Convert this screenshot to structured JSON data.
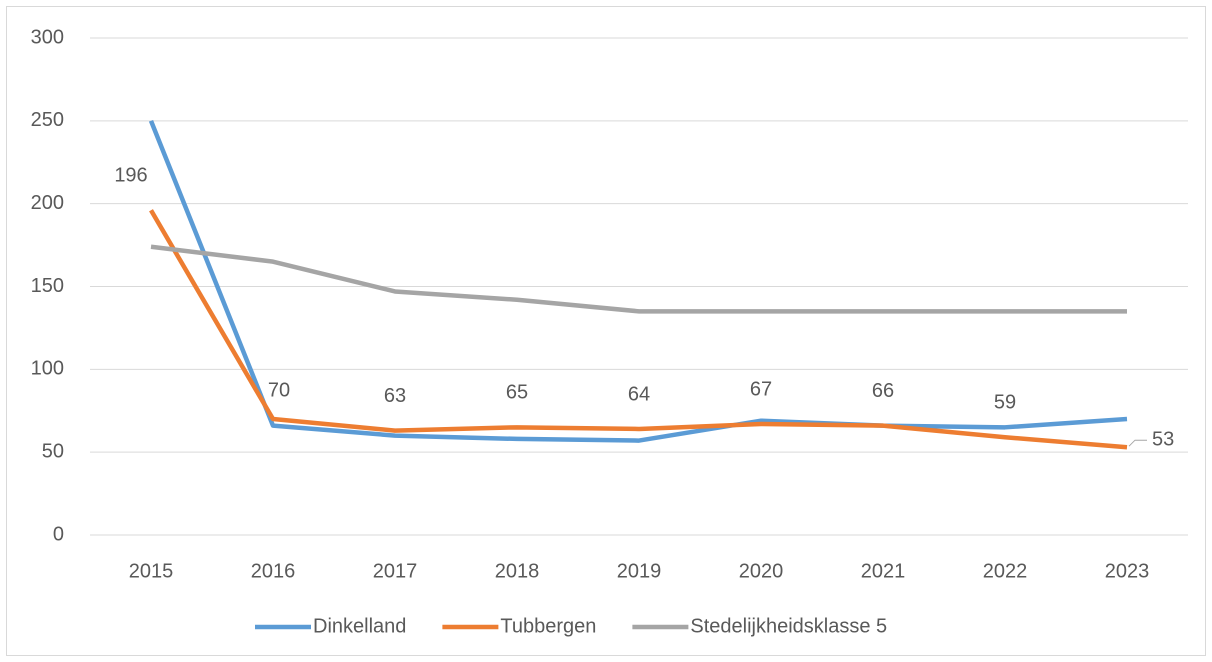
{
  "chart_data": {
    "type": "line",
    "categories": [
      "2015",
      "2016",
      "2017",
      "2018",
      "2019",
      "2020",
      "2021",
      "2022",
      "2023"
    ],
    "series": [
      {
        "name": "Dinkelland",
        "color": "#5b9bd5",
        "values": [
          250,
          66,
          60,
          58,
          57,
          69,
          66,
          65,
          70
        ]
      },
      {
        "name": "Tubbergen",
        "color": "#ed7d31",
        "values": [
          196,
          70,
          63,
          65,
          64,
          67,
          66,
          59,
          53
        ],
        "data_labels": true
      },
      {
        "name": "Stedelijkheidsklasse 5",
        "color": "#a5a5a5",
        "values": [
          174,
          165,
          147,
          142,
          135,
          135,
          135,
          135,
          135
        ]
      }
    ],
    "ylim": [
      0,
      300
    ],
    "yticks": [
      0,
      50,
      100,
      150,
      200,
      250,
      300
    ],
    "grid": true,
    "legend": "bottom"
  }
}
